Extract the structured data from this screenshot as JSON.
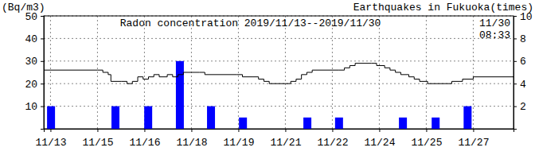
{
  "chart_data": {
    "type": "line",
    "title": "Radon concentration 2019/11/13--2019/11/30",
    "y_label": "(Bq/m3)",
    "y2_label": "Earthquakes in Fukuoka(times)",
    "annotations": [
      "11/30",
      "08:33"
    ],
    "xlim": [
      0,
      17.5
    ],
    "xticks": [
      {
        "value": 0.25,
        "label": "11/13"
      },
      {
        "value": 2.0,
        "label": "11/15"
      },
      {
        "value": 3.75,
        "label": "11/16"
      },
      {
        "value": 5.5,
        "label": "11/18"
      },
      {
        "value": 7.25,
        "label": "11/19"
      },
      {
        "value": 9.0,
        "label": "11/21"
      },
      {
        "value": 10.75,
        "label": "11/22"
      },
      {
        "value": 12.5,
        "label": "11/24"
      },
      {
        "value": 14.25,
        "label": "11/25"
      },
      {
        "value": 16.0,
        "label": "11/27"
      }
    ],
    "ylim": [
      0,
      50
    ],
    "yticks": [
      10,
      20,
      30,
      40,
      50
    ],
    "y2lim": [
      0,
      10
    ],
    "y2ticks": [
      2,
      4,
      6,
      8,
      10
    ],
    "grid": true,
    "series": [
      {
        "type": "bar",
        "axis": "y2",
        "color": "#0000ff",
        "x": [
          0.27,
          2.67,
          3.89,
          5.07,
          6.23,
          7.42,
          9.82,
          11.0,
          13.38,
          14.6,
          15.79
        ],
        "values": [
          2,
          2,
          2,
          6,
          2,
          1,
          1,
          1,
          1,
          1,
          2
        ]
      },
      {
        "type": "line",
        "color": "#000000",
        "line_style": "step",
        "x": [
          0,
          2.0,
          2.2,
          2.4,
          2.5,
          2.9,
          3.1,
          3.3,
          3.5,
          3.7,
          3.9,
          4.1,
          4.3,
          4.6,
          4.8,
          5.0,
          5.2,
          5.8,
          6.0,
          7.2,
          7.4,
          7.8,
          8.0,
          8.2,
          8.4,
          9.0,
          9.2,
          9.4,
          9.6,
          9.8,
          10.0,
          11.0,
          11.2,
          11.4,
          11.6,
          12.2,
          12.4,
          12.7,
          12.9,
          13.1,
          13.3,
          13.6,
          13.8,
          14.0,
          14.3,
          15.0,
          15.2,
          15.6,
          16.0,
          17.5
        ],
        "values": [
          26,
          26,
          25,
          24,
          21,
          21,
          20,
          21,
          23,
          22,
          23,
          24,
          23,
          24,
          23,
          24,
          25,
          25,
          24,
          24,
          23,
          23,
          22,
          21,
          20,
          20,
          21,
          22,
          24,
          25,
          26,
          26,
          27,
          28,
          29,
          29,
          28,
          27,
          26,
          25,
          24,
          23,
          22,
          21,
          20,
          20,
          21,
          22,
          23,
          23
        ]
      }
    ]
  }
}
